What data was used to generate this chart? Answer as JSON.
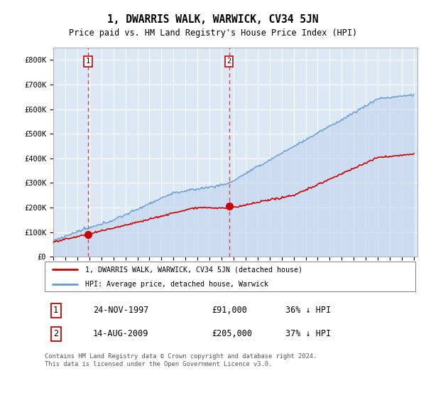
{
  "title": "1, DWARRIS WALK, WARWICK, CV34 5JN",
  "subtitle": "Price paid vs. HM Land Registry's House Price Index (HPI)",
  "bg_color": "#dce8f5",
  "x_start_year": 1995,
  "x_end_year": 2025,
  "ylim": [
    0,
    850000
  ],
  "yticks": [
    0,
    100000,
    200000,
    300000,
    400000,
    500000,
    600000,
    700000,
    800000
  ],
  "ytick_labels": [
    "£0",
    "£100K",
    "£200K",
    "£300K",
    "£400K",
    "£500K",
    "£600K",
    "£700K",
    "£800K"
  ],
  "transaction1_date": 1997.9,
  "transaction1_price": 91000,
  "transaction2_date": 2009.62,
  "transaction2_price": 205000,
  "red_line_color": "#cc0000",
  "blue_line_color": "#6699cc",
  "blue_fill_color": "#c5d8ee",
  "dashed_line_color": "#dd4444",
  "legend_label_red": "1, DWARRIS WALK, WARWICK, CV34 5JN (detached house)",
  "legend_label_blue": "HPI: Average price, detached house, Warwick",
  "table_row1": [
    "1",
    "24-NOV-1997",
    "£91,000",
    "36% ↓ HPI"
  ],
  "table_row2": [
    "2",
    "14-AUG-2009",
    "£205,000",
    "37% ↓ HPI"
  ],
  "footer": "Contains HM Land Registry data © Crown copyright and database right 2024.\nThis data is licensed under the Open Government Licence v3.0."
}
